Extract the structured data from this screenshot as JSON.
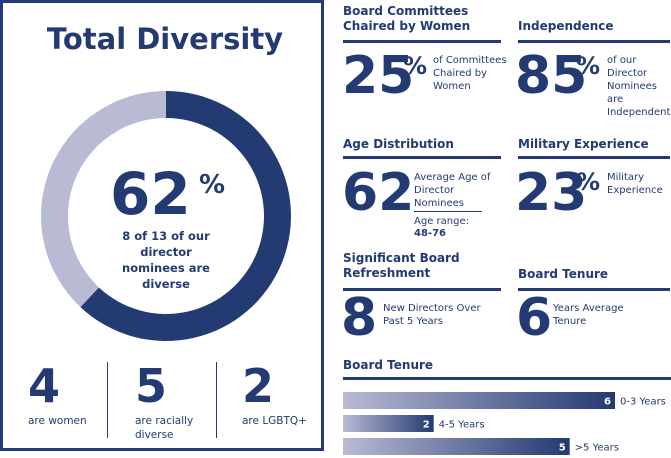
{
  "total_diversity": {
    "title": "Total Diversity",
    "percent": "62",
    "percent_sign": "%",
    "caption": "8 of 13 of our director nominees are diverse",
    "stats": [
      {
        "value": "4",
        "label": "are women"
      },
      {
        "value": "5",
        "label": "are racially diverse"
      },
      {
        "value": "2",
        "label": "are LGBTQ+"
      }
    ]
  },
  "committees": {
    "title": "Board Committees Chaired by Women",
    "value": "25",
    "sign": "%",
    "text": "of Committees Chaired by Women"
  },
  "independence": {
    "title": "Independence",
    "value": "85",
    "sign": "%",
    "text": "of our Director Nominees are Independent"
  },
  "age": {
    "title": "Age Distribution",
    "value": "62",
    "text": "Average Age of Director Nominees",
    "range_label": "Age range:",
    "range_value": "48-76"
  },
  "military": {
    "title": "Military Experience",
    "value": "23",
    "sign": "%",
    "text": "Military Experience"
  },
  "refreshment": {
    "title": "Significant Board Refreshment",
    "value": "8",
    "text": "New Directors Over Past 5 Years"
  },
  "tenure_avg": {
    "title": "Board Tenure",
    "value": "6",
    "text": "Years Average Tenure"
  },
  "tenure_chart": {
    "title": "Board Tenure"
  },
  "colors": {
    "navy": "#233a72",
    "light": "#b9bad4",
    "white": "#ffffff"
  },
  "chart_data": [
    {
      "type": "pie",
      "title": "Total Diversity",
      "categories": [
        "diverse",
        "not diverse"
      ],
      "values": [
        62,
        38
      ]
    },
    {
      "type": "bar",
      "title": "Board Tenure",
      "categories": [
        "0-3 Years",
        "4-5 Years",
        ">5 Years"
      ],
      "values": [
        6,
        2,
        5
      ],
      "xlim": [
        0,
        6
      ]
    }
  ]
}
